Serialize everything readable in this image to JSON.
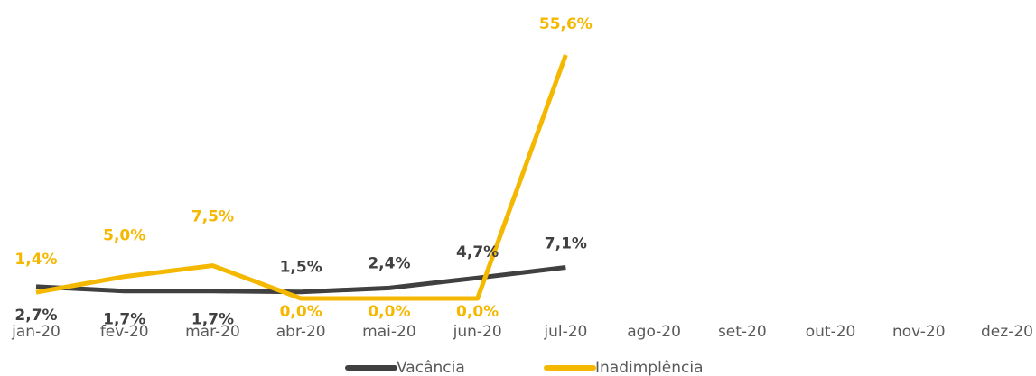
{
  "chart_data": {
    "type": "line",
    "categories": [
      "jan-20",
      "fev-20",
      "mar-20",
      "abr-20",
      "mai-20",
      "jun-20",
      "jul-20",
      "ago-20",
      "set-20",
      "out-20",
      "nov-20",
      "dez-20"
    ],
    "series": [
      {
        "name": "Vacância",
        "color": "#404040",
        "values": [
          2.7,
          1.7,
          1.7,
          1.5,
          2.4,
          4.7,
          7.1,
          null,
          null,
          null,
          null,
          null
        ],
        "value_labels": [
          "2,7%",
          "1,7%",
          "1,7%",
          "1,5%",
          "2,4%",
          "4,7%",
          "7,1%",
          null,
          null,
          null,
          null,
          null
        ]
      },
      {
        "name": "Inadimplência",
        "color": "#f5b800",
        "values": [
          1.4,
          5.0,
          7.5,
          0.0,
          0.0,
          0.0,
          55.6,
          null,
          null,
          null,
          null,
          null
        ],
        "value_labels": [
          "1,4%",
          "5,0%",
          "7,5%",
          "0,0%",
          "0,0%",
          "0,0%",
          "55,6%",
          null,
          null,
          null,
          null,
          null
        ]
      }
    ]
  }
}
